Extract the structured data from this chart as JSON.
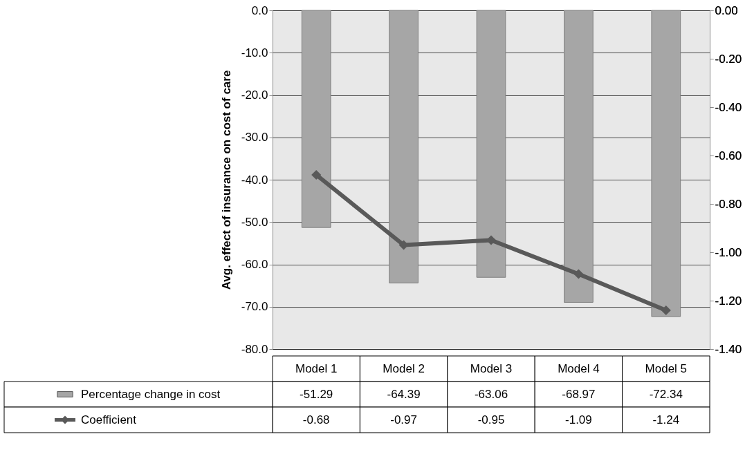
{
  "chart_data": {
    "type": "bar",
    "ylabel": "Avg. effect of insurance on cost of care",
    "categories": [
      "Model 1",
      "Model 2",
      "Model 3",
      "Model 4",
      "Model 5"
    ],
    "series": [
      {
        "name": "Percentage change in cost",
        "color": "#a6a6a6",
        "values": [
          -51.29,
          -64.39,
          -63.06,
          -68.97,
          -72.34
        ]
      },
      {
        "name": "Coefficient",
        "type": "line",
        "axis": "y2",
        "color": "#595959",
        "values": [
          -0.68,
          -0.97,
          -0.95,
          -1.09,
          -1.24
        ]
      }
    ],
    "ylim": [
      -80,
      0
    ],
    "yticks": [
      {
        "value": 0,
        "label": "0.0"
      },
      {
        "value": -10,
        "label": "-10.0"
      },
      {
        "value": -20,
        "label": "-20.0"
      },
      {
        "value": -30,
        "label": "-30.0"
      },
      {
        "value": -40,
        "label": "-40.0"
      },
      {
        "value": -50,
        "label": "-50.0"
      },
      {
        "value": -60,
        "label": "-60.0"
      },
      {
        "value": -70,
        "label": "-70.0"
      },
      {
        "value": -80,
        "label": "-80.0"
      }
    ],
    "y2lim": [
      -1.4,
      0
    ],
    "y2ticks": [
      {
        "value": 0,
        "label": "0.00"
      },
      {
        "value": -0.2,
        "label": "-0.20"
      },
      {
        "value": -0.4,
        "label": "-0.40"
      },
      {
        "value": -0.6,
        "label": "-0.60"
      },
      {
        "value": -0.8,
        "label": "-0.80"
      },
      {
        "value": -1.0,
        "label": "-1.00"
      },
      {
        "value": -1.2,
        "label": "-1.20"
      },
      {
        "value": -1.4,
        "label": "-1.40"
      }
    ],
    "grid": "y",
    "marker": "diamond",
    "line_style": "solid",
    "legend": "bottom left",
    "data_labels": true
  }
}
